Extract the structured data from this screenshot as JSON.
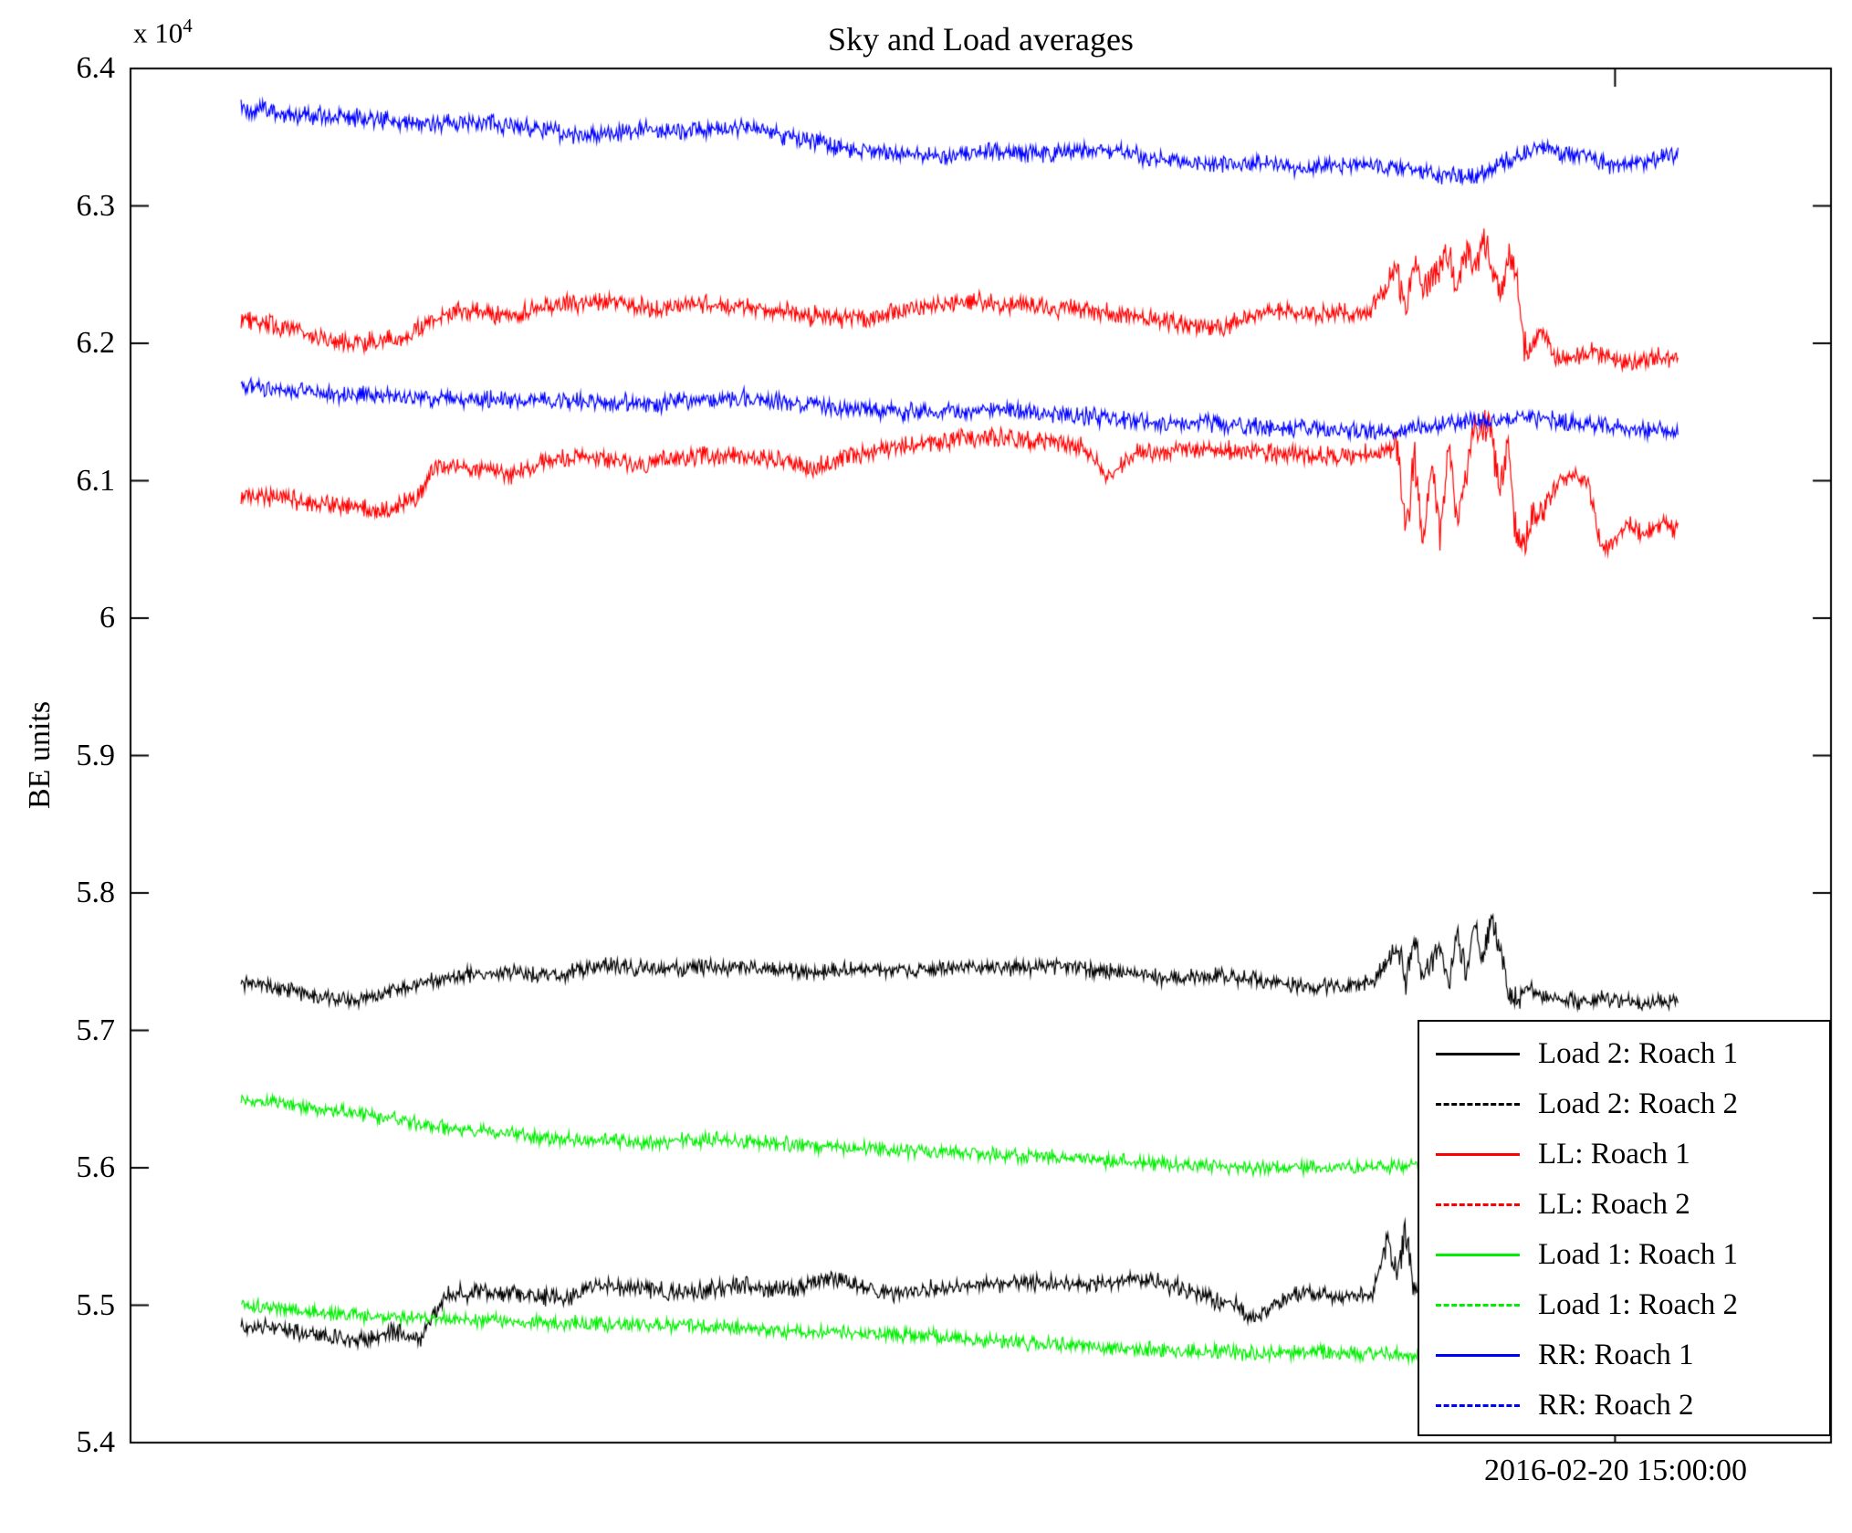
{
  "chart_data": {
    "type": "line",
    "title": "Sky and Load averages",
    "ylabel": "BE units",
    "y_scale": {
      "prefix": "x 10",
      "exponent": "4"
    },
    "ylim": [
      54000,
      64000
    ],
    "grid": false,
    "legend_position": "bottom-right",
    "x_tick": {
      "frac": 0.873,
      "label": "2016-02-20 15:00:00"
    },
    "yticks": [
      {
        "value": 64000,
        "label": "6.4"
      },
      {
        "value": 63000,
        "label": "6.3"
      },
      {
        "value": 62000,
        "label": "6.2"
      },
      {
        "value": 61000,
        "label": "6.1"
      },
      {
        "value": 60000,
        "label": "6"
      },
      {
        "value": 59000,
        "label": "5.9"
      },
      {
        "value": 58000,
        "label": "5.8"
      },
      {
        "value": 57000,
        "label": "5.7"
      },
      {
        "value": 56000,
        "label": "5.6"
      },
      {
        "value": 55000,
        "label": "5.5"
      },
      {
        "value": 54000,
        "label": "5.4"
      }
    ],
    "series": [
      {
        "name": "Load 2: Roach 1",
        "color": "#000000",
        "dash": "solid",
        "noise": 55,
        "boost": {
          "from": 0.735,
          "to": 0.775,
          "factor": 1.8
        },
        "points": [
          [
            0.065,
            54850
          ],
          [
            0.09,
            54820
          ],
          [
            0.11,
            54780
          ],
          [
            0.135,
            54740
          ],
          [
            0.155,
            54800
          ],
          [
            0.17,
            54760
          ],
          [
            0.185,
            55080
          ],
          [
            0.21,
            55100
          ],
          [
            0.235,
            55070
          ],
          [
            0.255,
            55040
          ],
          [
            0.275,
            55140
          ],
          [
            0.3,
            55110
          ],
          [
            0.33,
            55100
          ],
          [
            0.36,
            55150
          ],
          [
            0.385,
            55110
          ],
          [
            0.41,
            55190
          ],
          [
            0.43,
            55140
          ],
          [
            0.45,
            55080
          ],
          [
            0.47,
            55120
          ],
          [
            0.5,
            55150
          ],
          [
            0.53,
            55170
          ],
          [
            0.56,
            55140
          ],
          [
            0.585,
            55200
          ],
          [
            0.61,
            55150
          ],
          [
            0.63,
            55070
          ],
          [
            0.65,
            55000
          ],
          [
            0.66,
            54890
          ],
          [
            0.675,
            55040
          ],
          [
            0.69,
            55100
          ],
          [
            0.71,
            55050
          ],
          [
            0.73,
            55080
          ],
          [
            0.74,
            55480
          ],
          [
            0.745,
            55200
          ],
          [
            0.75,
            55560
          ],
          [
            0.755,
            55120
          ],
          [
            0.76,
            55430
          ],
          [
            0.765,
            55020
          ],
          [
            0.775,
            55120
          ],
          [
            0.79,
            55050
          ],
          [
            0.82,
            55030
          ],
          [
            0.85,
            55050
          ],
          [
            0.88,
            55000
          ],
          [
            0.91,
            55020
          ]
        ]
      },
      {
        "name": "Load 2: Roach 2",
        "color": "#000000",
        "dash": "dashed",
        "noise": 50,
        "boost": {
          "from": 0.74,
          "to": 0.82,
          "factor": 1.8
        },
        "points": [
          [
            0.065,
            57350
          ],
          [
            0.09,
            57300
          ],
          [
            0.11,
            57250
          ],
          [
            0.13,
            57210
          ],
          [
            0.16,
            57300
          ],
          [
            0.19,
            57400
          ],
          [
            0.22,
            57420
          ],
          [
            0.25,
            57400
          ],
          [
            0.28,
            57470
          ],
          [
            0.31,
            57440
          ],
          [
            0.34,
            57470
          ],
          [
            0.37,
            57450
          ],
          [
            0.4,
            57420
          ],
          [
            0.43,
            57450
          ],
          [
            0.46,
            57420
          ],
          [
            0.49,
            57470
          ],
          [
            0.52,
            57450
          ],
          [
            0.55,
            57470
          ],
          [
            0.58,
            57420
          ],
          [
            0.61,
            57380
          ],
          [
            0.64,
            57400
          ],
          [
            0.67,
            57350
          ],
          [
            0.7,
            57320
          ],
          [
            0.73,
            57350
          ],
          [
            0.745,
            57600
          ],
          [
            0.75,
            57350
          ],
          [
            0.755,
            57650
          ],
          [
            0.76,
            57400
          ],
          [
            0.77,
            57600
          ],
          [
            0.775,
            57310
          ],
          [
            0.78,
            57700
          ],
          [
            0.785,
            57420
          ],
          [
            0.79,
            57760
          ],
          [
            0.795,
            57550
          ],
          [
            0.8,
            57790
          ],
          [
            0.805,
            57640
          ],
          [
            0.81,
            57300
          ],
          [
            0.815,
            57210
          ],
          [
            0.82,
            57340
          ],
          [
            0.83,
            57250
          ],
          [
            0.85,
            57210
          ],
          [
            0.87,
            57230
          ],
          [
            0.89,
            57200
          ],
          [
            0.91,
            57230
          ]
        ]
      },
      {
        "name": "LL: Roach 1",
        "color": "#ff0000",
        "dash": "solid",
        "noise": 60,
        "boost": {
          "from": 0.74,
          "to": 0.835,
          "factor": 2.0
        },
        "points": [
          [
            0.065,
            60900
          ],
          [
            0.09,
            60870
          ],
          [
            0.12,
            60820
          ],
          [
            0.15,
            60790
          ],
          [
            0.168,
            60880
          ],
          [
            0.18,
            61110
          ],
          [
            0.205,
            61090
          ],
          [
            0.225,
            61040
          ],
          [
            0.245,
            61150
          ],
          [
            0.27,
            61170
          ],
          [
            0.3,
            61120
          ],
          [
            0.33,
            61180
          ],
          [
            0.355,
            61190
          ],
          [
            0.38,
            61140
          ],
          [
            0.4,
            61100
          ],
          [
            0.42,
            61170
          ],
          [
            0.45,
            61240
          ],
          [
            0.48,
            61290
          ],
          [
            0.51,
            61310
          ],
          [
            0.54,
            61290
          ],
          [
            0.56,
            61240
          ],
          [
            0.575,
            61040
          ],
          [
            0.59,
            61190
          ],
          [
            0.62,
            61240
          ],
          [
            0.65,
            61220
          ],
          [
            0.68,
            61200
          ],
          [
            0.71,
            61170
          ],
          [
            0.73,
            61200
          ],
          [
            0.745,
            61250
          ],
          [
            0.75,
            60620
          ],
          [
            0.755,
            61180
          ],
          [
            0.76,
            60520
          ],
          [
            0.765,
            61140
          ],
          [
            0.77,
            60560
          ],
          [
            0.775,
            61240
          ],
          [
            0.78,
            60700
          ],
          [
            0.79,
            61340
          ],
          [
            0.8,
            61390
          ],
          [
            0.805,
            60900
          ],
          [
            0.81,
            61340
          ],
          [
            0.815,
            60520
          ],
          [
            0.82,
            60600
          ],
          [
            0.83,
            60780
          ],
          [
            0.84,
            61000
          ],
          [
            0.85,
            61040
          ],
          [
            0.858,
            60950
          ],
          [
            0.865,
            60500
          ],
          [
            0.872,
            60550
          ],
          [
            0.88,
            60700
          ],
          [
            0.89,
            60600
          ],
          [
            0.9,
            60700
          ],
          [
            0.91,
            60650
          ]
        ]
      },
      {
        "name": "LL: Roach 2",
        "color": "#ff0000",
        "dash": "dashed",
        "noise": 60,
        "boost": {
          "from": 0.74,
          "to": 0.825,
          "factor": 1.8
        },
        "points": [
          [
            0.065,
            62170
          ],
          [
            0.09,
            62120
          ],
          [
            0.11,
            62050
          ],
          [
            0.13,
            61990
          ],
          [
            0.16,
            62050
          ],
          [
            0.19,
            62240
          ],
          [
            0.22,
            62200
          ],
          [
            0.25,
            62280
          ],
          [
            0.28,
            62310
          ],
          [
            0.31,
            62250
          ],
          [
            0.34,
            62280
          ],
          [
            0.37,
            62250
          ],
          [
            0.4,
            62200
          ],
          [
            0.43,
            62180
          ],
          [
            0.46,
            62250
          ],
          [
            0.49,
            62310
          ],
          [
            0.52,
            62280
          ],
          [
            0.55,
            62250
          ],
          [
            0.58,
            62220
          ],
          [
            0.61,
            62150
          ],
          [
            0.64,
            62110
          ],
          [
            0.67,
            62250
          ],
          [
            0.7,
            62200
          ],
          [
            0.73,
            62250
          ],
          [
            0.745,
            62540
          ],
          [
            0.75,
            62260
          ],
          [
            0.755,
            62590
          ],
          [
            0.76,
            62350
          ],
          [
            0.77,
            62540
          ],
          [
            0.775,
            62650
          ],
          [
            0.78,
            62400
          ],
          [
            0.785,
            62690
          ],
          [
            0.79,
            62540
          ],
          [
            0.795,
            62740
          ],
          [
            0.8,
            62590
          ],
          [
            0.805,
            62310
          ],
          [
            0.81,
            62640
          ],
          [
            0.815,
            62540
          ],
          [
            0.82,
            61960
          ],
          [
            0.83,
            62090
          ],
          [
            0.84,
            61860
          ],
          [
            0.86,
            61950
          ],
          [
            0.88,
            61860
          ],
          [
            0.9,
            61900
          ],
          [
            0.91,
            61880
          ]
        ]
      },
      {
        "name": "Load 1: Roach 1",
        "color": "#00ee00",
        "dash": "solid",
        "noise": 45,
        "points": [
          [
            0.065,
            56500
          ],
          [
            0.1,
            56450
          ],
          [
            0.14,
            56380
          ],
          [
            0.18,
            56300
          ],
          [
            0.22,
            56250
          ],
          [
            0.26,
            56200
          ],
          [
            0.3,
            56180
          ],
          [
            0.34,
            56210
          ],
          [
            0.38,
            56180
          ],
          [
            0.42,
            56150
          ],
          [
            0.46,
            56120
          ],
          [
            0.5,
            56100
          ],
          [
            0.54,
            56080
          ],
          [
            0.58,
            56050
          ],
          [
            0.62,
            56020
          ],
          [
            0.66,
            56000
          ],
          [
            0.7,
            56000
          ],
          [
            0.74,
            56010
          ],
          [
            0.78,
            56000
          ],
          [
            0.82,
            55990
          ],
          [
            0.86,
            55990
          ],
          [
            0.91,
            55950
          ]
        ]
      },
      {
        "name": "Load 1: Roach 2",
        "color": "#00ee00",
        "dash": "dashed",
        "noise": 45,
        "points": [
          [
            0.065,
            55000
          ],
          [
            0.1,
            54960
          ],
          [
            0.14,
            54920
          ],
          [
            0.18,
            54900
          ],
          [
            0.22,
            54880
          ],
          [
            0.26,
            54870
          ],
          [
            0.3,
            54850
          ],
          [
            0.34,
            54850
          ],
          [
            0.38,
            54820
          ],
          [
            0.42,
            54800
          ],
          [
            0.46,
            54780
          ],
          [
            0.5,
            54750
          ],
          [
            0.54,
            54720
          ],
          [
            0.58,
            54690
          ],
          [
            0.62,
            54670
          ],
          [
            0.66,
            54650
          ],
          [
            0.7,
            54660
          ],
          [
            0.74,
            54640
          ],
          [
            0.78,
            54630
          ],
          [
            0.82,
            54620
          ],
          [
            0.86,
            54600
          ],
          [
            0.91,
            54610
          ]
        ]
      },
      {
        "name": "RR: Roach 1",
        "color": "#0000ff",
        "dash": "solid",
        "noise": 55,
        "points": [
          [
            0.065,
            63720
          ],
          [
            0.1,
            63660
          ],
          [
            0.14,
            63640
          ],
          [
            0.17,
            63580
          ],
          [
            0.2,
            63620
          ],
          [
            0.24,
            63560
          ],
          [
            0.27,
            63500
          ],
          [
            0.3,
            63560
          ],
          [
            0.33,
            63540
          ],
          [
            0.36,
            63580
          ],
          [
            0.39,
            63500
          ],
          [
            0.42,
            63420
          ],
          [
            0.45,
            63380
          ],
          [
            0.48,
            63350
          ],
          [
            0.51,
            63400
          ],
          [
            0.54,
            63380
          ],
          [
            0.57,
            63420
          ],
          [
            0.6,
            63350
          ],
          [
            0.63,
            63300
          ],
          [
            0.66,
            63320
          ],
          [
            0.69,
            63280
          ],
          [
            0.72,
            63300
          ],
          [
            0.75,
            63280
          ],
          [
            0.77,
            63220
          ],
          [
            0.79,
            63200
          ],
          [
            0.81,
            63350
          ],
          [
            0.83,
            63420
          ],
          [
            0.85,
            63380
          ],
          [
            0.87,
            63300
          ],
          [
            0.89,
            63320
          ],
          [
            0.91,
            63380
          ]
        ]
      },
      {
        "name": "RR: Roach 2",
        "color": "#0000ff",
        "dash": "dashed",
        "noise": 55,
        "points": [
          [
            0.065,
            61680
          ],
          [
            0.12,
            61640
          ],
          [
            0.18,
            61600
          ],
          [
            0.24,
            61580
          ],
          [
            0.3,
            61560
          ],
          [
            0.36,
            61600
          ],
          [
            0.4,
            61550
          ],
          [
            0.45,
            61500
          ],
          [
            0.5,
            61520
          ],
          [
            0.55,
            61480
          ],
          [
            0.6,
            61430
          ],
          [
            0.65,
            61400
          ],
          [
            0.7,
            61380
          ],
          [
            0.74,
            61350
          ],
          [
            0.78,
            61430
          ],
          [
            0.82,
            61470
          ],
          [
            0.85,
            61420
          ],
          [
            0.88,
            61380
          ],
          [
            0.91,
            61350
          ]
        ]
      }
    ]
  }
}
